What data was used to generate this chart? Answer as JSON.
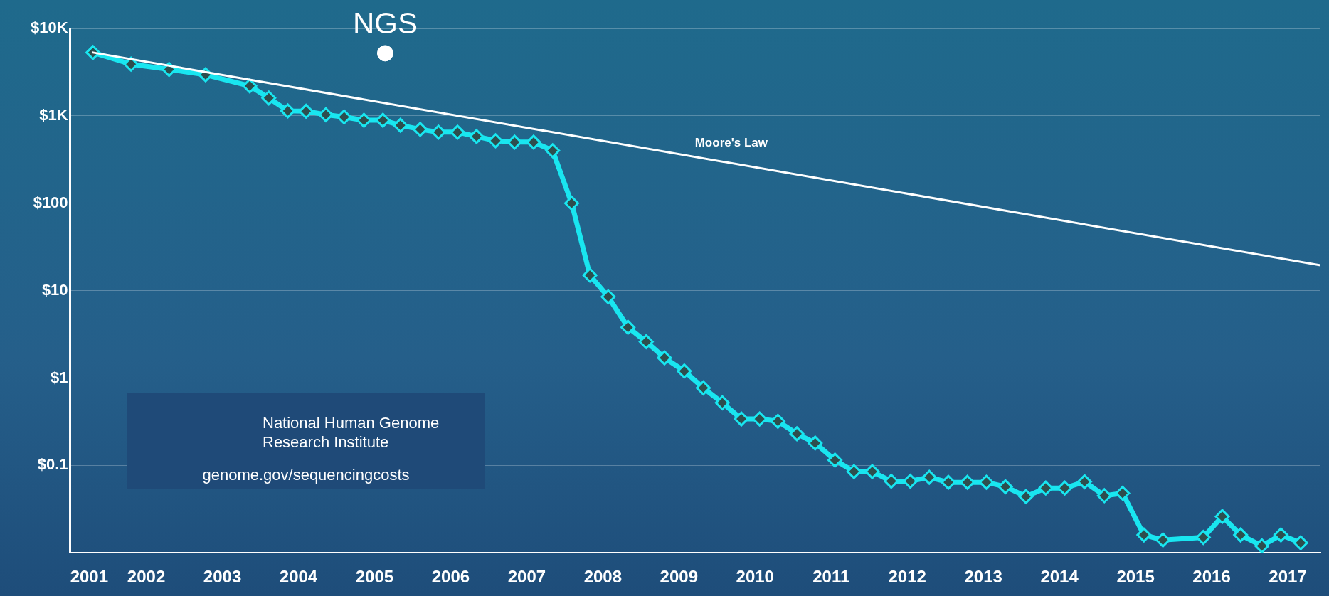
{
  "chart_data": {
    "type": "line",
    "xlim": [
      2001.0,
      2017.43
    ],
    "xticks": [
      {
        "value": 2001.25,
        "label": "2001"
      },
      2002,
      2003,
      2004,
      2005,
      2006,
      2007,
      2008,
      2009,
      2010,
      2011,
      2012,
      2013,
      2014,
      2015,
      2016,
      2017
    ],
    "ylim": [
      0.01,
      10000
    ],
    "yticks": [
      {
        "value": 0.1,
        "label": "$0.1"
      },
      {
        "value": 1,
        "label": "$1"
      },
      {
        "value": 10,
        "label": "$10"
      },
      {
        "value": 100,
        "label": "$100"
      },
      {
        "value": 1000,
        "label": "$1K"
      },
      {
        "value": 10000,
        "label": "$10K"
      }
    ],
    "log": "y",
    "grid": "y",
    "legend": false,
    "line_style": "solid",
    "series": [
      {
        "color": "#19e6f0",
        "marker": "diamond",
        "x": [
          2001.3,
          2001.8,
          2002.3,
          2002.78,
          2003.36,
          2003.61,
          2003.86,
          2004.1,
          2004.36,
          2004.6,
          2004.86,
          2005.11,
          2005.34,
          2005.6,
          2005.84,
          2006.09,
          2006.34,
          2006.59,
          2006.84,
          2007.09,
          2007.34,
          2007.59,
          2007.83,
          2008.07,
          2008.33,
          2008.57,
          2008.81,
          2009.07,
          2009.32,
          2009.57,
          2009.82,
          2010.06,
          2010.3,
          2010.55,
          2010.79,
          2011.05,
          2011.3,
          2011.54,
          2011.79,
          2012.04,
          2012.29,
          2012.54,
          2012.79,
          2013.04,
          2013.29,
          2013.56,
          2013.82,
          2014.07,
          2014.33,
          2014.59,
          2014.83,
          2015.11,
          2015.36,
          2015.89,
          2016.14,
          2016.38,
          2016.66,
          2016.91,
          2017.17
        ],
        "values": [
          5300,
          3900,
          3400,
          2950,
          2200,
          1600,
          1140,
          1130,
          1030,
          970,
          890,
          890,
          780,
          700,
          650,
          650,
          580,
          520,
          500,
          500,
          400,
          100,
          15,
          8.5,
          3.8,
          2.6,
          1.7,
          1.2,
          0.77,
          0.52,
          0.34,
          0.34,
          0.32,
          0.23,
          0.18,
          0.115,
          0.085,
          0.085,
          0.066,
          0.066,
          0.073,
          0.064,
          0.064,
          0.064,
          0.057,
          0.044,
          0.055,
          0.055,
          0.065,
          0.045,
          0.048,
          0.016,
          0.014,
          0.015,
          0.026,
          0.016,
          0.012,
          0.016,
          0.013
        ]
      },
      {
        "name": "Moore's Law",
        "color": "#ffffff",
        "marker": "none",
        "x": [
          2001.3,
          2017.43
        ],
        "values": [
          5300,
          19.5
        ]
      },
      {
        "name": "NGS",
        "type": "scatter",
        "color": "#ffffff",
        "marker": "circle",
        "x": [
          2005.14
        ],
        "values": [
          5200
        ]
      }
    ],
    "annotations": [
      "National Human Genome Research Institute",
      "genome.gov/sequencingcosts"
    ]
  }
}
